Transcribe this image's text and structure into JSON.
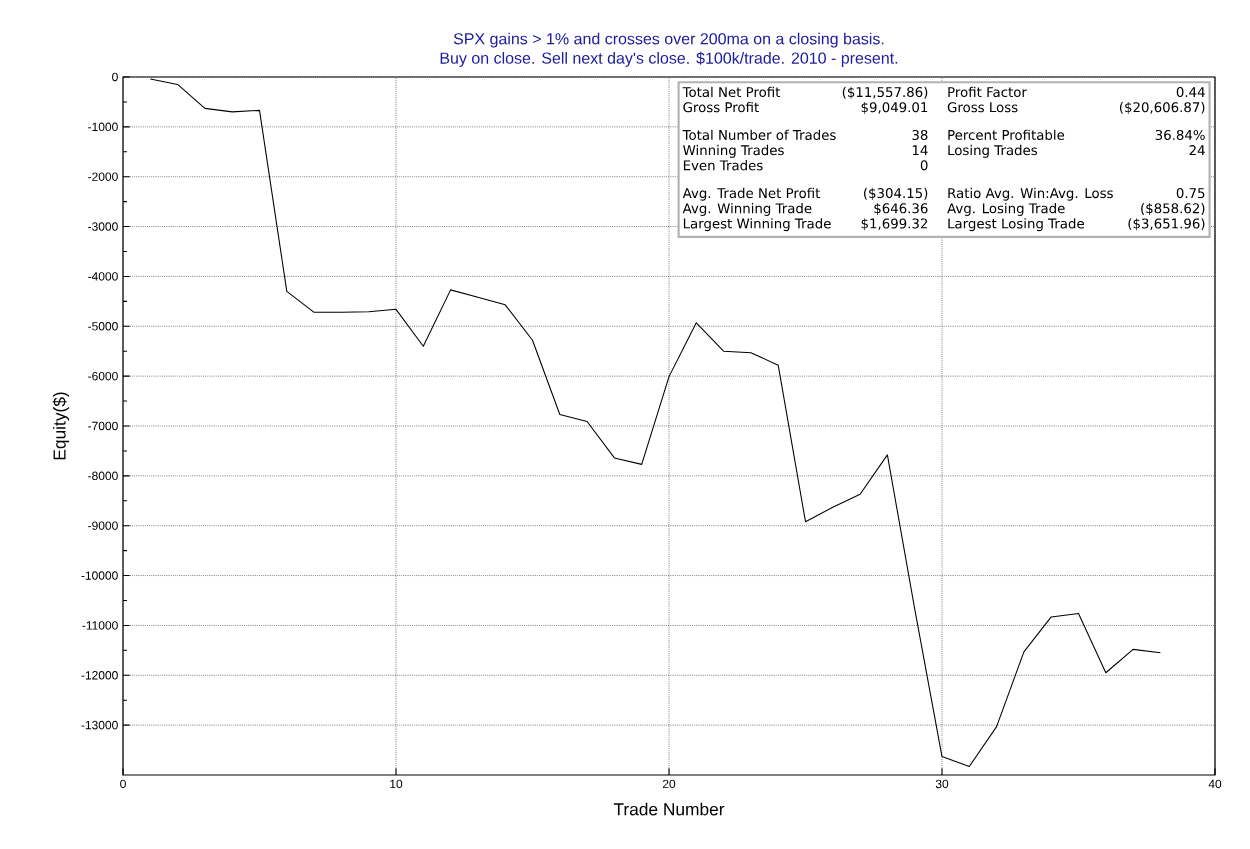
{
  "chart_data": {
    "type": "line",
    "title": "SPX gains > 1% and crosses over 200ma on a closing basis.",
    "subtitle": "Buy on close. Sell next day's close. $100k/trade. 2010 - present.",
    "xlabel": "Trade Number",
    "ylabel": "Equity($)",
    "x": [
      1,
      2,
      3,
      4,
      5,
      6,
      7,
      8,
      9,
      10,
      11,
      12,
      13,
      14,
      15,
      16,
      17,
      18,
      19,
      20,
      21,
      22,
      23,
      24,
      25,
      26,
      27,
      28,
      29,
      30,
      31,
      32,
      33,
      34,
      35,
      36,
      37,
      38
    ],
    "values": [
      -40,
      -150,
      -630,
      -700,
      -670,
      -4300,
      -4720,
      -4720,
      -4710,
      -4660,
      -5400,
      -4270,
      -4420,
      -4570,
      -5280,
      -6770,
      -6910,
      -7640,
      -7770,
      -6010,
      -4930,
      -5500,
      -5530,
      -5780,
      -8920,
      -8630,
      -8370,
      -7580,
      -10670,
      -13630,
      -13830,
      -13030,
      -11530,
      -10830,
      -10760,
      -11950,
      -11480,
      -11550
    ],
    "color": "#000000",
    "xlim": [
      0,
      40
    ],
    "ylim": [
      -14000,
      0
    ],
    "xticks": [
      0,
      10,
      20,
      30,
      40
    ],
    "yticks": [
      -13000,
      -12000,
      -11000,
      -10000,
      -9000,
      -8000,
      -7000,
      -6000,
      -5000,
      -4000,
      -3000,
      -2000,
      -1000,
      0
    ],
    "grid": true,
    "marker": "none",
    "line_style": "solid",
    "annotations": [
      "Total Net Profit",
      "($11,557.86)",
      "Profit Factor",
      "0.44",
      "Gross Profit",
      "$9,049.01",
      "Gross Loss",
      "($20,606.87)",
      "Total Number of Trades",
      "38",
      "Percent Profitable",
      "36.84%",
      "Winning Trades",
      "14",
      "Losing Trades",
      "24",
      "Even Trades",
      "0",
      "Avg. Trade Net Profit",
      "($304.15)",
      "Ratio Avg. Win:Avg. Loss",
      "0.75",
      "Avg. Winning Trade",
      "$646.36",
      "Avg. Losing Trade",
      "($858.62)",
      "Largest Winning Trade",
      "$1,699.32",
      "Largest Losing Trade",
      "($3,651.96)"
    ]
  }
}
